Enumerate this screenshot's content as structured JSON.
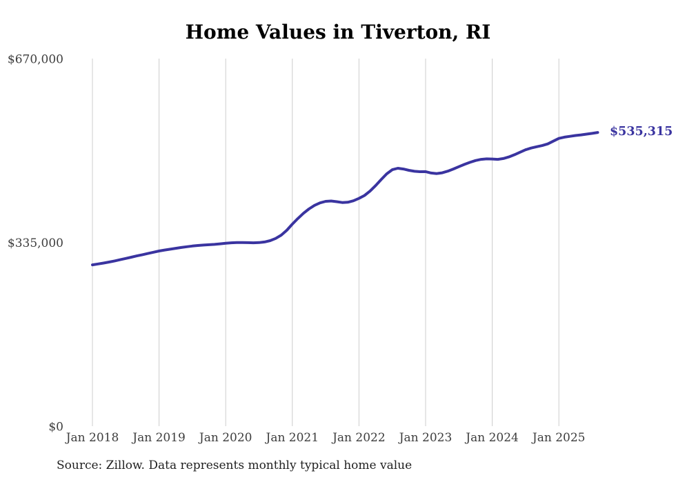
{
  "chart_data": {
    "type": "line",
    "title": "Home Values in Tiverton, RI",
    "series_name": "Monthly typical home value",
    "x": [
      "2018-01",
      "2018-02",
      "2018-03",
      "2018-04",
      "2018-05",
      "2018-06",
      "2018-07",
      "2018-08",
      "2018-09",
      "2018-10",
      "2018-11",
      "2018-12",
      "2019-01",
      "2019-02",
      "2019-03",
      "2019-04",
      "2019-05",
      "2019-06",
      "2019-07",
      "2019-08",
      "2019-09",
      "2019-10",
      "2019-11",
      "2019-12",
      "2020-01",
      "2020-02",
      "2020-03",
      "2020-04",
      "2020-05",
      "2020-06",
      "2020-07",
      "2020-08",
      "2020-09",
      "2020-10",
      "2020-11",
      "2020-12",
      "2021-01",
      "2021-02",
      "2021-03",
      "2021-04",
      "2021-05",
      "2021-06",
      "2021-07",
      "2021-08",
      "2021-09",
      "2021-10",
      "2021-11",
      "2021-12",
      "2022-01",
      "2022-02",
      "2022-03",
      "2022-04",
      "2022-05",
      "2022-06",
      "2022-07",
      "2022-08",
      "2022-09",
      "2022-10",
      "2022-11",
      "2022-12",
      "2023-01",
      "2023-02",
      "2023-03",
      "2023-04",
      "2023-05",
      "2023-06",
      "2023-07",
      "2023-08",
      "2023-09",
      "2023-10",
      "2023-11",
      "2023-12",
      "2024-01",
      "2024-02",
      "2024-03",
      "2024-04",
      "2024-05",
      "2024-06",
      "2024-07",
      "2024-08",
      "2024-09",
      "2024-10",
      "2024-11",
      "2024-12",
      "2025-01",
      "2025-02",
      "2025-03",
      "2025-04",
      "2025-05",
      "2025-06",
      "2025-07",
      "2025-08"
    ],
    "values": [
      294000,
      295600,
      297300,
      299200,
      301200,
      303400,
      305700,
      308000,
      310300,
      312500,
      314700,
      317000,
      319300,
      321000,
      322600,
      324200,
      325700,
      327100,
      328300,
      329300,
      330100,
      330700,
      331300,
      332300,
      333500,
      334200,
      334600,
      334700,
      334500,
      334300,
      334600,
      335800,
      338200,
      342200,
      348200,
      357000,
      368300,
      378500,
      388000,
      396000,
      402500,
      407000,
      409800,
      410400,
      409200,
      407600,
      408200,
      410800,
      415200,
      420500,
      428500,
      438500,
      449500,
      460000,
      467500,
      470100,
      468800,
      466300,
      464600,
      463900,
      464000,
      461500,
      460400,
      461800,
      464800,
      468800,
      473000,
      477200,
      481000,
      484200,
      486300,
      487200,
      487000,
      486400,
      487800,
      490800,
      494800,
      499300,
      503800,
      507000,
      509300,
      511500,
      514500,
      519500,
      524500,
      526800,
      528300,
      529800,
      531000,
      532300,
      533800,
      535315
    ],
    "ylim": [
      0,
      670000
    ],
    "yticks": [
      {
        "label": "$670,000",
        "value": 670000
      },
      {
        "label": "$335,000",
        "value": 335000
      },
      {
        "label": "$0",
        "value": 0
      }
    ],
    "xticks": [
      {
        "label": "Jan 2018",
        "month_index": 0
      },
      {
        "label": "Jan 2019",
        "month_index": 12
      },
      {
        "label": "Jan 2020",
        "month_index": 24
      },
      {
        "label": "Jan 2021",
        "month_index": 36
      },
      {
        "label": "Jan 2022",
        "month_index": 48
      },
      {
        "label": "Jan 2023",
        "month_index": 60
      },
      {
        "label": "Jan 2024",
        "month_index": 72
      },
      {
        "label": "Jan 2025",
        "month_index": 84
      },
      {
        "label": "Jan 2025",
        "month_index": 84
      }
    ],
    "end_label": "$535,315",
    "grid": "vertical-only",
    "legend": "none",
    "colors": {
      "line": "#3a34a0",
      "grid": "#cccccc",
      "tick_text": "#3d3d3d",
      "title_text": "#000000",
      "source_text": "#1f1f1f",
      "end_label_text": "#3a34a0"
    },
    "source_note": "Source: Zillow. Data represents monthly typical home value"
  }
}
